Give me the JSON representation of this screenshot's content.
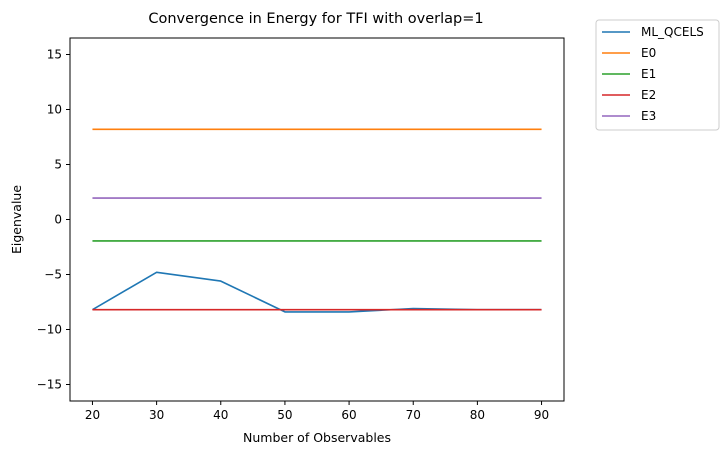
{
  "chart_data": {
    "type": "line",
    "title": "Convergence in Energy for TFI with overlap=1",
    "xlabel": "Number of Observables",
    "ylabel": "Eigenvalue",
    "x": [
      20,
      30,
      40,
      50,
      60,
      70,
      80,
      90
    ],
    "xticks": [
      20,
      30,
      40,
      50,
      60,
      70,
      80,
      90
    ],
    "yticks": [
      -15,
      -10,
      -5,
      0,
      5,
      10,
      15
    ],
    "xlim": [
      16.5,
      93.5
    ],
    "ylim": [
      -16.5,
      16.5
    ],
    "grid": false,
    "legend_position": "outside-top-right",
    "series": [
      {
        "name": "ML_QCELS",
        "color": "#1f77b4",
        "values": [
          -8.2,
          -4.8,
          -5.6,
          -8.4,
          -8.4,
          -8.1,
          -8.2,
          -8.2
        ]
      },
      {
        "name": "E0",
        "color": "#ff7f0e",
        "values": [
          8.2,
          8.2,
          8.2,
          8.2,
          8.2,
          8.2,
          8.2,
          8.2
        ]
      },
      {
        "name": "E1",
        "color": "#2ca02c",
        "values": [
          -1.95,
          -1.95,
          -1.95,
          -1.95,
          -1.95,
          -1.95,
          -1.95,
          -1.95
        ]
      },
      {
        "name": "E2",
        "color": "#d62728",
        "values": [
          -8.2,
          -8.2,
          -8.2,
          -8.2,
          -8.2,
          -8.2,
          -8.2,
          -8.2
        ]
      },
      {
        "name": "E3",
        "color": "#9467bd",
        "values": [
          1.95,
          1.95,
          1.95,
          1.95,
          1.95,
          1.95,
          1.95,
          1.95
        ]
      }
    ]
  }
}
